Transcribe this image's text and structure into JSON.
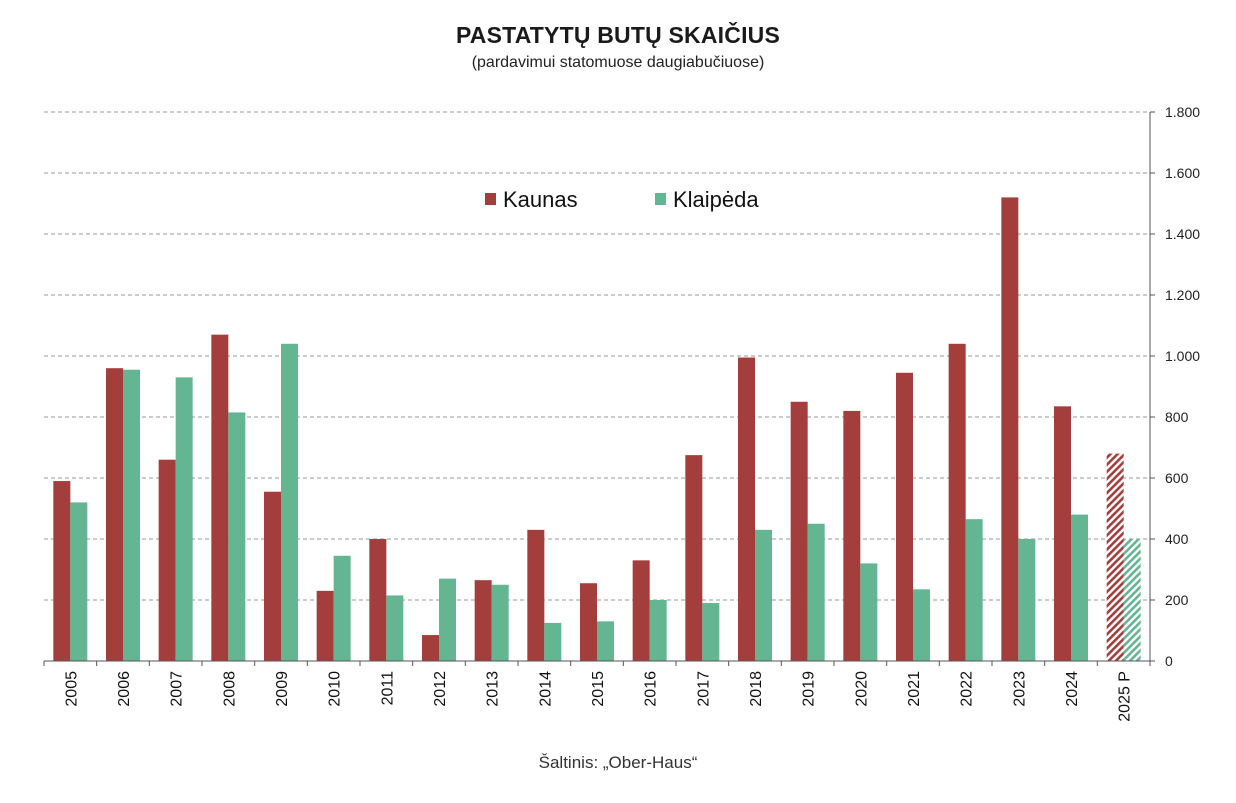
{
  "title": "PASTATYTŲ BUTŲ SKAIČIUS",
  "subtitle": "(pardavimui statomuose daugiabučiuose)",
  "source": "Šaltinis: „Ober-Haus“",
  "colors": {
    "kaunas": "#a43e3c",
    "klaipeda": "#64b592",
    "grid": "#9a9a9a"
  },
  "chart_data": {
    "type": "bar",
    "title": "PASTATYTŲ BUTŲ SKAIČIUS",
    "subtitle": "(pardavimui statomuose daugiabučiuose)",
    "xlabel": "",
    "ylabel": "",
    "ylim": [
      0,
      1800
    ],
    "y_ticks": [
      0,
      200,
      400,
      600,
      800,
      1000,
      1200,
      1400,
      1600,
      1800
    ],
    "y_tick_labels": [
      "0",
      "200",
      "400",
      "600",
      "800",
      "1.000",
      "1.200",
      "1.400",
      "1.600",
      "1.800"
    ],
    "y_axis_position": "right",
    "grid": true,
    "legend_position": "top-center",
    "categories": [
      "2005",
      "2006",
      "2007",
      "2008",
      "2009",
      "2010",
      "2011",
      "2012",
      "2013",
      "2014",
      "2015",
      "2016",
      "2017",
      "2018",
      "2019",
      "2020",
      "2021",
      "2022",
      "2023",
      "2024",
      "2025 P"
    ],
    "series": [
      {
        "name": "Kaunas",
        "values": [
          590,
          960,
          660,
          1070,
          555,
          230,
          400,
          85,
          265,
          430,
          255,
          330,
          675,
          995,
          850,
          820,
          945,
          1040,
          1520,
          835,
          680
        ]
      },
      {
        "name": "Klaipėda",
        "values": [
          520,
          955,
          930,
          815,
          1040,
          345,
          215,
          270,
          250,
          125,
          130,
          200,
          190,
          430,
          450,
          320,
          235,
          465,
          400,
          480,
          400
        ]
      }
    ],
    "forecast_categories": [
      "2025 P"
    ]
  }
}
